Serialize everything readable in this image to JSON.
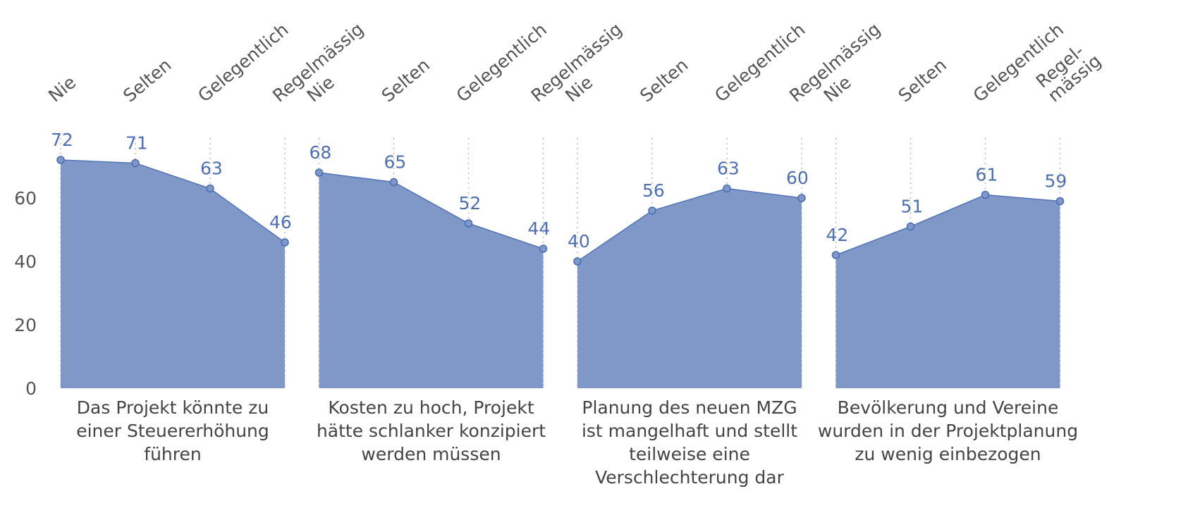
{
  "chart_data": [
    {
      "type": "area",
      "title": "Das Projekt könnte zu\neiner Steuererhöhung\nführen",
      "categories": [
        "Nie",
        "Selten",
        "Gelegentlich",
        "Regelmässig"
      ],
      "values": [
        72,
        71,
        63,
        46
      ],
      "color": "#7f98c8",
      "ylim": [
        0,
        80
      ],
      "yticks": [
        0,
        20,
        40,
        60
      ]
    },
    {
      "type": "area",
      "title": "Kosten zu hoch, Projekt\nhätte schlanker konzipiert\nwerden müssen",
      "categories": [
        "Nie",
        "Selten",
        "Gelegentlich",
        "Regelmässig"
      ],
      "values": [
        68,
        65,
        52,
        44
      ],
      "color": "#7f98c8",
      "ylim": [
        0,
        80
      ]
    },
    {
      "type": "area",
      "title": "Planung des neuen MZG\nist mangelhaft und stellt\nteilweise eine\nVerschlechterung dar",
      "categories": [
        "Nie",
        "Selten",
        "Gelegentlich",
        "Regelmässig"
      ],
      "values": [
        40,
        56,
        63,
        60
      ],
      "color": "#7f98c8",
      "ylim": [
        0,
        80
      ]
    },
    {
      "type": "area",
      "title": "Bevölkerung und Vereine\nwurden in der Projektplanung\nzu wenig einbezogen",
      "categories": [
        "Nie",
        "Selten",
        "Gelegentlich",
        "Regel-\nmässig"
      ],
      "values": [
        42,
        51,
        61,
        59
      ],
      "color": "#7f98c8",
      "ylim": [
        0,
        80
      ]
    }
  ]
}
